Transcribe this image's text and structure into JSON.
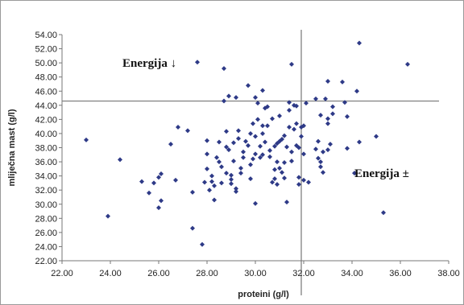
{
  "chart_data": {
    "type": "scatter",
    "title": "",
    "xlabel": "proteini (g/l)",
    "ylabel": "mliječna mast (g/l)",
    "xlim": [
      22,
      38
    ],
    "ylim": [
      22,
      54
    ],
    "x_ticks": [
      "22.00",
      "24.00",
      "26.00",
      "28.00",
      "30.00",
      "32.00",
      "34.00",
      "36.00",
      "38.00"
    ],
    "y_ticks": [
      "22.00",
      "24.00",
      "26.00",
      "28.00",
      "30.00",
      "32.00",
      "34.00",
      "36.00",
      "38.00",
      "40.00",
      "42.00",
      "44.00",
      "46.00",
      "48.00",
      "50.00",
      "52.00",
      "54.00"
    ],
    "grid": false,
    "marker_color": "#2e3a87",
    "line_color": "#777777",
    "reference_lines": {
      "x": 31.9,
      "y": 44.6
    },
    "annotations": [
      {
        "text": "Energija ↓",
        "x": 24.5,
        "y": 50.0
      },
      {
        "text": "Energija ±",
        "x": 34.1,
        "y": 34.4
      }
    ],
    "series": [
      {
        "points": [
          [
            23.0,
            39.1
          ],
          [
            23.9,
            28.3
          ],
          [
            24.4,
            36.3
          ],
          [
            25.3,
            33.2
          ],
          [
            25.6,
            31.6
          ],
          [
            25.8,
            33.0
          ],
          [
            26.0,
            33.8
          ],
          [
            26.0,
            29.5
          ],
          [
            26.1,
            30.5
          ],
          [
            26.1,
            34.3
          ],
          [
            26.5,
            38.5
          ],
          [
            26.7,
            33.4
          ],
          [
            26.8,
            40.9
          ],
          [
            27.2,
            40.4
          ],
          [
            27.4,
            26.6
          ],
          [
            27.4,
            31.7
          ],
          [
            27.6,
            50.1
          ],
          [
            27.8,
            24.3
          ],
          [
            27.9,
            33.1
          ],
          [
            28.0,
            35.0
          ],
          [
            28.0,
            37.1
          ],
          [
            28.0,
            39.0
          ],
          [
            28.1,
            32.0
          ],
          [
            28.2,
            34.0
          ],
          [
            28.2,
            33.2
          ],
          [
            28.3,
            32.6
          ],
          [
            28.3,
            30.6
          ],
          [
            28.4,
            36.6
          ],
          [
            28.5,
            38.8
          ],
          [
            28.5,
            36.0
          ],
          [
            28.6,
            35.3
          ],
          [
            28.6,
            33.0
          ],
          [
            28.7,
            49.2
          ],
          [
            28.7,
            44.6
          ],
          [
            28.8,
            38.1
          ],
          [
            28.8,
            40.3
          ],
          [
            28.8,
            34.4
          ],
          [
            28.9,
            45.3
          ],
          [
            28.9,
            37.7
          ],
          [
            29.0,
            34.1
          ],
          [
            29.0,
            32.9
          ],
          [
            29.0,
            33.5
          ],
          [
            29.1,
            38.7
          ],
          [
            29.1,
            36.1
          ],
          [
            29.2,
            45.1
          ],
          [
            29.2,
            32.2
          ],
          [
            29.2,
            31.8
          ],
          [
            29.3,
            40.4
          ],
          [
            29.3,
            39.3
          ],
          [
            29.4,
            35.1
          ],
          [
            29.4,
            34.4
          ],
          [
            29.5,
            37.4
          ],
          [
            29.5,
            36.6
          ],
          [
            29.6,
            38.9
          ],
          [
            29.7,
            46.8
          ],
          [
            29.7,
            38.3
          ],
          [
            29.8,
            40.0
          ],
          [
            29.8,
            35.6
          ],
          [
            29.8,
            33.6
          ],
          [
            29.9,
            41.4
          ],
          [
            29.9,
            36.4
          ],
          [
            30.0,
            45.1
          ],
          [
            30.0,
            39.6
          ],
          [
            30.0,
            37.1
          ],
          [
            30.0,
            30.1
          ],
          [
            30.1,
            44.3
          ],
          [
            30.1,
            42.0
          ],
          [
            30.2,
            38.2
          ],
          [
            30.2,
            36.6
          ],
          [
            30.3,
            46.1
          ],
          [
            30.3,
            41.1
          ],
          [
            30.3,
            40.0
          ],
          [
            30.3,
            37.0
          ],
          [
            30.4,
            43.6
          ],
          [
            30.4,
            38.8
          ],
          [
            30.5,
            43.8
          ],
          [
            30.5,
            41.1
          ],
          [
            30.6,
            37.6
          ],
          [
            30.6,
            36.7
          ],
          [
            30.7,
            42.1
          ],
          [
            30.7,
            33.1
          ],
          [
            30.8,
            38.2
          ],
          [
            30.8,
            34.9
          ],
          [
            30.8,
            33.6
          ],
          [
            30.9,
            38.6
          ],
          [
            30.9,
            36.0
          ],
          [
            30.9,
            32.8
          ],
          [
            31.0,
            42.5
          ],
          [
            31.0,
            38.9
          ],
          [
            31.0,
            35.1
          ],
          [
            31.1,
            39.2
          ],
          [
            31.1,
            34.5
          ],
          [
            31.2,
            39.7
          ],
          [
            31.2,
            35.9
          ],
          [
            31.2,
            33.7
          ],
          [
            31.3,
            30.3
          ],
          [
            31.3,
            38.1
          ],
          [
            31.4,
            44.4
          ],
          [
            31.4,
            43.3
          ],
          [
            31.4,
            40.9
          ],
          [
            31.5,
            49.8
          ],
          [
            31.5,
            37.4
          ],
          [
            31.5,
            36.1
          ],
          [
            31.6,
            44.0
          ],
          [
            31.6,
            40.6
          ],
          [
            31.7,
            38.3
          ],
          [
            31.7,
            43.9
          ],
          [
            31.7,
            41.4
          ],
          [
            31.8,
            32.8
          ],
          [
            31.8,
            33.8
          ],
          [
            31.8,
            38.0
          ],
          [
            31.9,
            40.9
          ],
          [
            31.9,
            39.6
          ],
          [
            32.0,
            41.1
          ],
          [
            32.0,
            37.1
          ],
          [
            32.0,
            33.4
          ],
          [
            32.1,
            44.3
          ],
          [
            32.2,
            33.1
          ],
          [
            32.5,
            44.9
          ],
          [
            32.5,
            37.8
          ],
          [
            32.6,
            38.9
          ],
          [
            32.6,
            36.5
          ],
          [
            32.7,
            42.6
          ],
          [
            32.7,
            36.0
          ],
          [
            32.7,
            35.3
          ],
          [
            32.8,
            37.4
          ],
          [
            32.8,
            34.5
          ],
          [
            32.9,
            44.9
          ],
          [
            33.0,
            47.4
          ],
          [
            33.0,
            42.1
          ],
          [
            33.0,
            41.4
          ],
          [
            33.0,
            37.7
          ],
          [
            33.1,
            38.5
          ],
          [
            33.2,
            43.8
          ],
          [
            33.2,
            42.8
          ],
          [
            33.6,
            47.3
          ],
          [
            33.7,
            44.4
          ],
          [
            33.8,
            42.4
          ],
          [
            33.8,
            37.9
          ],
          [
            34.1,
            34.4
          ],
          [
            34.2,
            46.0
          ],
          [
            34.3,
            38.8
          ],
          [
            34.3,
            52.8
          ],
          [
            35.0,
            39.6
          ],
          [
            35.3,
            28.8
          ],
          [
            36.3,
            49.8
          ]
        ]
      }
    ]
  }
}
